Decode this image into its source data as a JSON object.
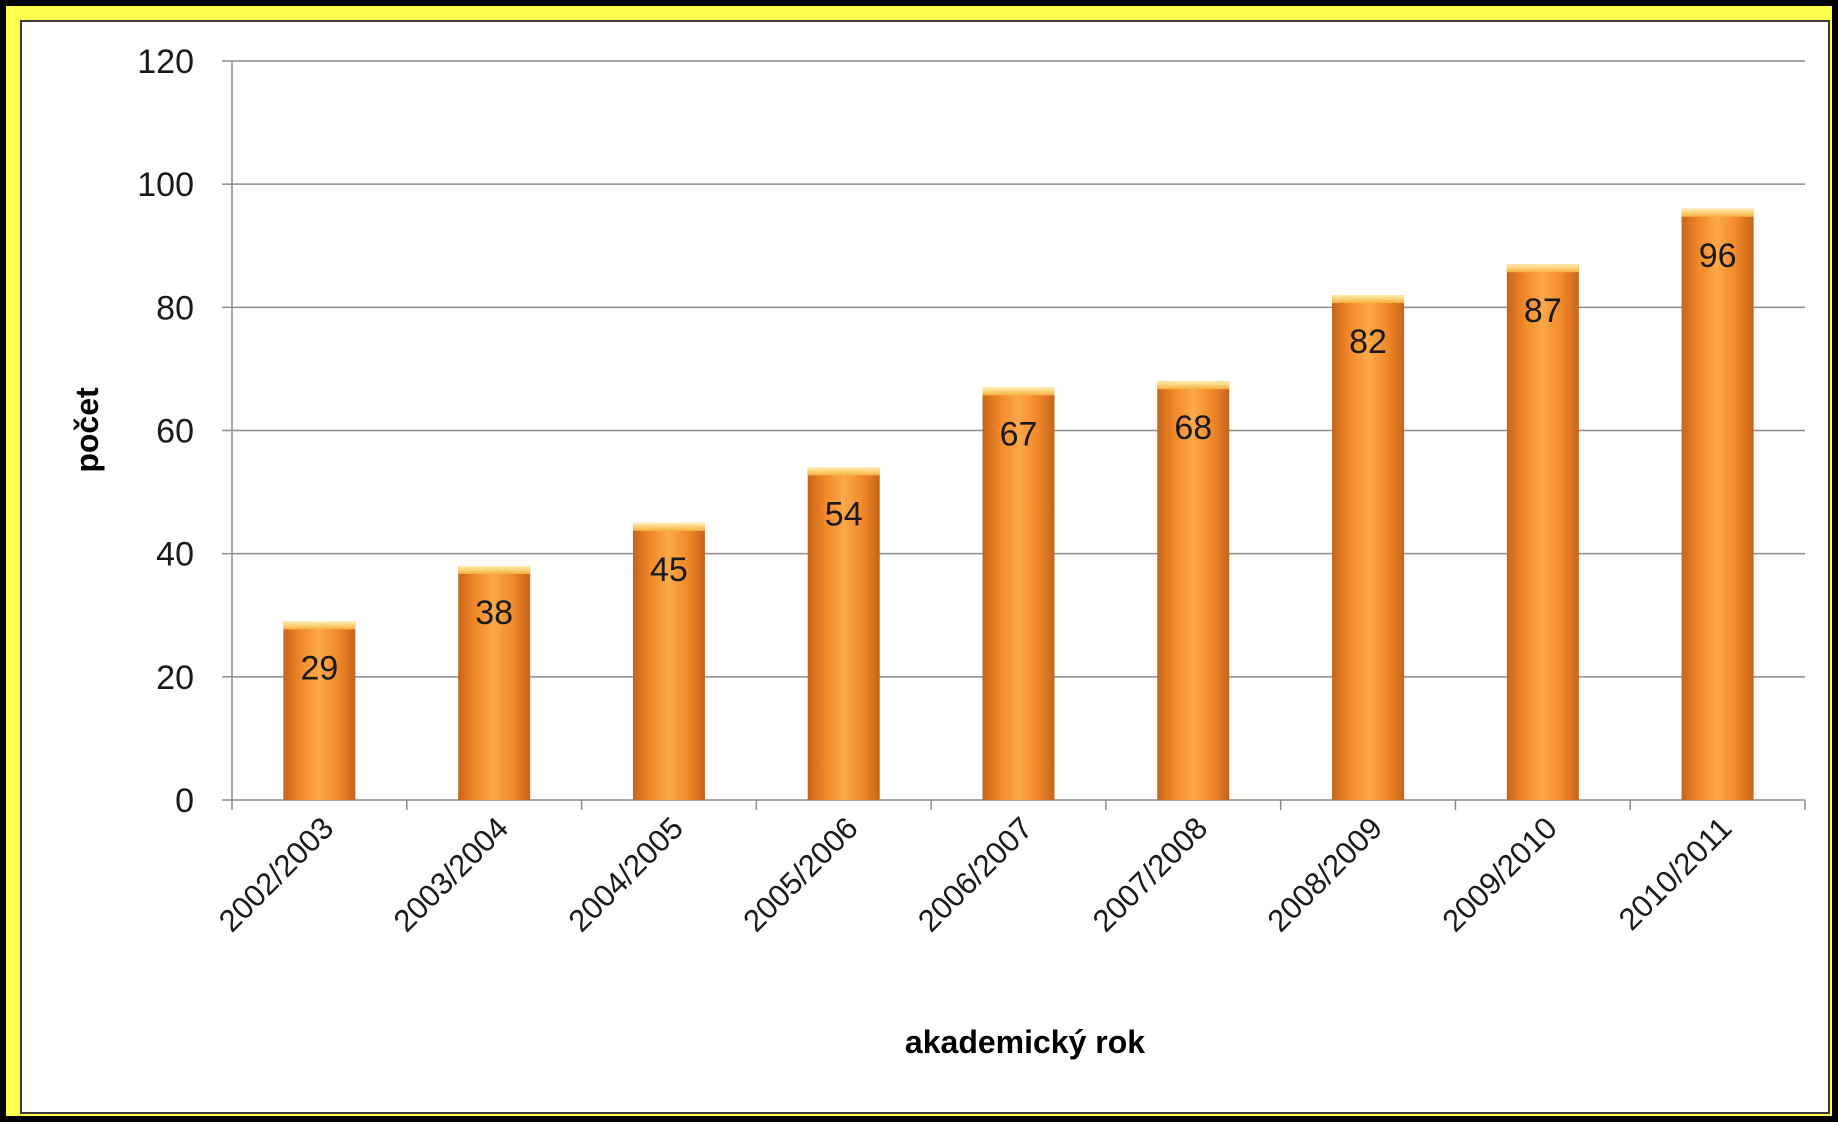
{
  "chart_data": {
    "type": "bar",
    "categories": [
      "2002/2003",
      "2003/2004",
      "2004/2005",
      "2005/2006",
      "2006/2007",
      "2007/2008",
      "2008/2009",
      "2009/2010",
      "2010/2011"
    ],
    "values": [
      29,
      38,
      45,
      54,
      67,
      68,
      82,
      87,
      96
    ],
    "data_labels": [
      "29",
      "38",
      "45",
      "54",
      "67",
      "68",
      "82",
      "87",
      "96"
    ],
    "title": "",
    "xlabel": "akademický rok",
    "ylabel": "počet",
    "ylim": [
      0,
      120
    ],
    "yticks": [
      0,
      20,
      40,
      60,
      80,
      100,
      120
    ],
    "ytick_labels": [
      "0",
      "20",
      "40",
      "60",
      "80",
      "100",
      "120"
    ],
    "grid": true,
    "legend": "none",
    "bar_color": "#f7941d",
    "frame_color": "#ffff4d"
  }
}
